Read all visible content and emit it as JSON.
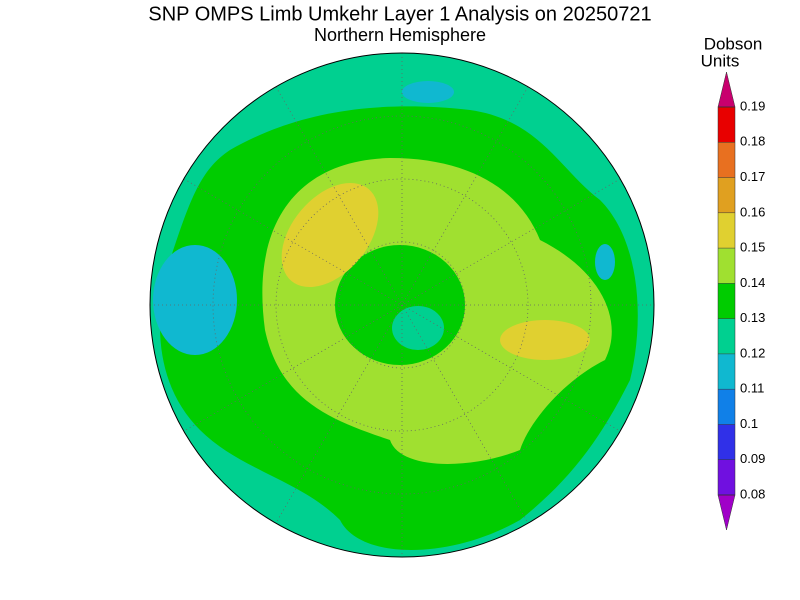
{
  "title": "SNP OMPS Limb Umkehr Layer 1 Analysis on 20250721",
  "subtitle": "Northern Hemisphere",
  "colorbar": {
    "label_lines": [
      "Dobson",
      "Units"
    ],
    "range": [
      0.08,
      0.19
    ],
    "ticks": [
      0.08,
      0.09,
      0.1,
      0.11,
      0.12,
      0.13,
      0.14,
      0.15,
      0.16,
      0.17,
      0.18,
      0.19
    ],
    "colors": [
      "#a000c8",
      "#7010e0",
      "#3030e8",
      "#1080e8",
      "#10b8d0",
      "#00d090",
      "#00cc00",
      "#a0e030",
      "#e0d030",
      "#e0a020",
      "#e87020",
      "#e80000",
      "#c8006e"
    ]
  }
}
